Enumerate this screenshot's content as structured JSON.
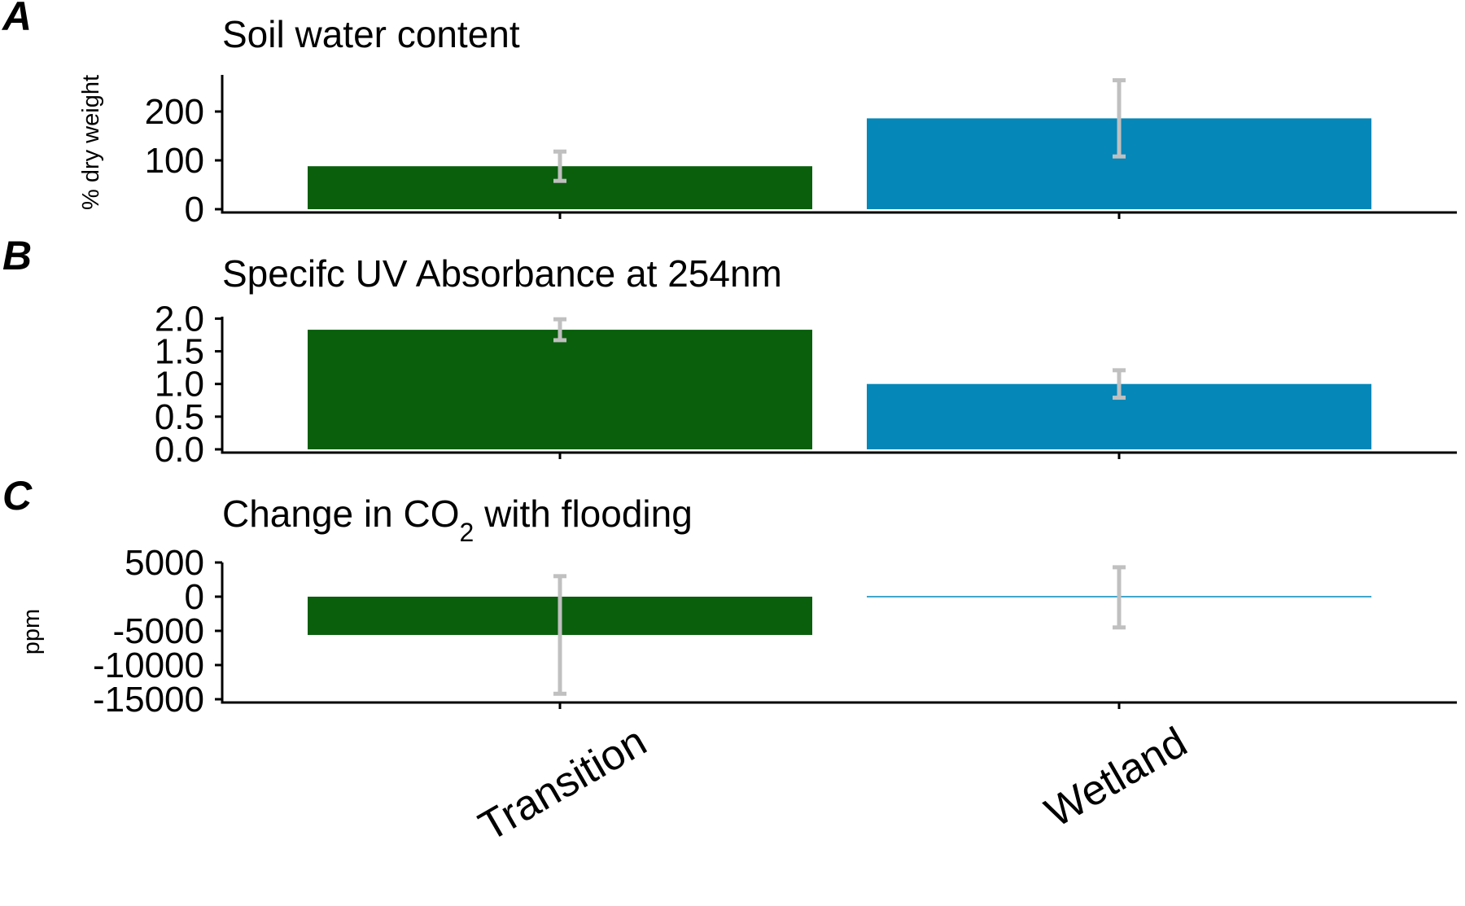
{
  "categories": [
    "Transition",
    "Wetland"
  ],
  "colors": {
    "Transition": "#0a5f0d",
    "Wetland": "#0587b8",
    "error_bar": "#c0c0c0",
    "axis": "#000000"
  },
  "chart_data": [
    {
      "type": "bar",
      "panel_letter": "A",
      "title": "Soil water content",
      "ylabel": "% dry weight",
      "xlabel": "",
      "categories": [
        "Transition",
        "Wetland"
      ],
      "values": [
        88,
        186
      ],
      "errors": [
        {
          "low": 58,
          "high": 118
        },
        {
          "low": 108,
          "high": 264
        }
      ],
      "ylim": [
        0,
        275
      ],
      "yticks": [
        0,
        100,
        200
      ],
      "ytick_labels": [
        "0",
        "100",
        "200"
      ],
      "grid": false,
      "legend": "none"
    },
    {
      "type": "bar",
      "panel_letter": "B",
      "title_prefix": "Specifc UV Absorbance at 254nm",
      "title_sub": "",
      "title_suffix": "",
      "ylabel": "",
      "xlabel": "",
      "categories": [
        "Transition",
        "Wetland"
      ],
      "values": [
        1.83,
        1.0
      ],
      "errors": [
        {
          "low": 1.67,
          "high": 1.99
        },
        {
          "low": 0.79,
          "high": 1.21
        }
      ],
      "ylim": [
        0,
        2.03
      ],
      "yticks": [
        0,
        0.5,
        1.0,
        1.5,
        2.0
      ],
      "ytick_labels": [
        "0.0",
        "0.5",
        "1.0",
        "1.5",
        "2.0"
      ],
      "grid": false,
      "legend": "none"
    },
    {
      "type": "bar",
      "panel_letter": "C",
      "title_prefix": "Change in CO",
      "title_sub": "2",
      "title_suffix": " with flooding",
      "ylabel": "ppm",
      "xlabel": "",
      "categories": [
        "Transition",
        "Wetland"
      ],
      "values": [
        -5600,
        0
      ],
      "errors": [
        {
          "low": -14200,
          "high": 3000
        },
        {
          "low": -4500,
          "high": 4300
        }
      ],
      "ylim": [
        -15000,
        5000
      ],
      "yticks": [
        -15000,
        -10000,
        -5000,
        0,
        5000
      ],
      "ytick_labels": [
        "-15000",
        "-10000",
        "-5000",
        "0",
        "5000"
      ],
      "grid": false,
      "legend": "none"
    }
  ]
}
